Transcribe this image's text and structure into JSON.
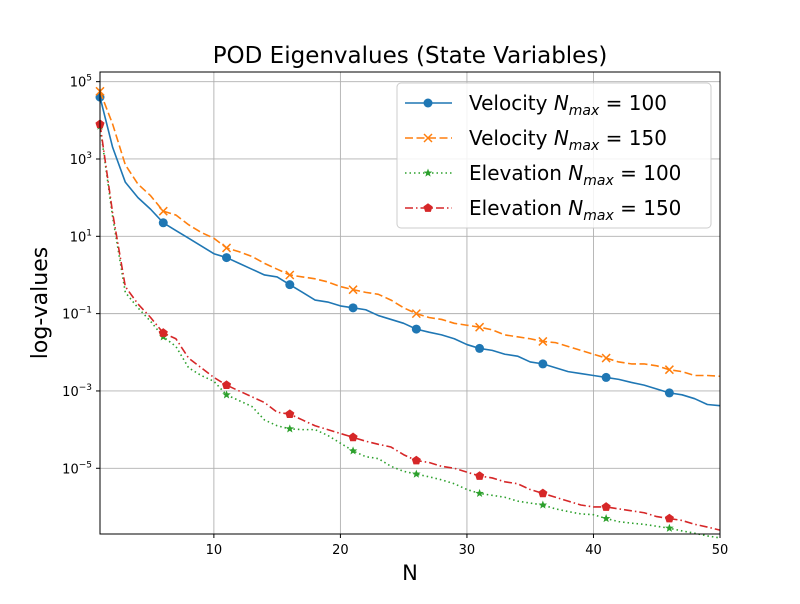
{
  "chart_data": {
    "type": "line",
    "title": "POD Eigenvalues (State Variables)",
    "xlabel": "N",
    "ylabel": "log-values",
    "xscale": "linear",
    "yscale": "log",
    "xlim": [
      1,
      50
    ],
    "ylim_exp": [
      -6.7,
      5.25
    ],
    "xticks": [
      10,
      20,
      30,
      40,
      50
    ],
    "yticks": [
      {
        "exp": 5,
        "base": "10",
        "sup": "5"
      },
      {
        "exp": 3,
        "base": "10",
        "sup": "3"
      },
      {
        "exp": 1,
        "base": "10",
        "sup": "1"
      },
      {
        "exp": -1,
        "base": "10",
        "sup": "−1"
      },
      {
        "exp": -3,
        "base": "10",
        "sup": "−3"
      },
      {
        "exp": -5,
        "base": "10",
        "sup": "−5"
      }
    ],
    "grid": true,
    "legend_position": "top-right",
    "x": [
      1,
      2,
      3,
      4,
      5,
      6,
      7,
      8,
      9,
      10,
      11,
      12,
      13,
      14,
      15,
      16,
      17,
      18,
      19,
      20,
      21,
      22,
      23,
      24,
      25,
      26,
      27,
      28,
      29,
      30,
      31,
      32,
      33,
      34,
      35,
      36,
      37,
      38,
      39,
      40,
      41,
      42,
      43,
      44,
      45,
      46,
      47,
      48,
      49,
      50
    ],
    "series": [
      {
        "name": "Velocity",
        "label_main": "Velocity ",
        "label_var": "N",
        "label_sub": "max",
        "label_eq": " = 100",
        "color": "#1f77b4",
        "dash": "",
        "marker": "circle",
        "log10": [
          4.6,
          3.3,
          2.4,
          2.0,
          1.7,
          1.35,
          1.15,
          0.95,
          0.75,
          0.55,
          0.45,
          0.3,
          0.15,
          0.0,
          -0.05,
          -0.25,
          -0.45,
          -0.65,
          -0.7,
          -0.8,
          -0.85,
          -0.9,
          -1.05,
          -1.15,
          -1.25,
          -1.4,
          -1.48,
          -1.55,
          -1.65,
          -1.8,
          -1.9,
          -1.95,
          -2.05,
          -2.1,
          -2.25,
          -2.3,
          -2.4,
          -2.5,
          -2.55,
          -2.6,
          -2.65,
          -2.7,
          -2.78,
          -2.85,
          -2.95,
          -3.05,
          -3.1,
          -3.2,
          -3.35,
          -3.38
        ]
      },
      {
        "name": "Velocity",
        "label_main": "Velocity ",
        "label_var": "N",
        "label_sub": "max",
        "label_eq": " = 150",
        "color": "#ff7f0e",
        "dash": "8,3.5",
        "marker": "x",
        "log10": [
          4.75,
          3.9,
          2.85,
          2.35,
          2.05,
          1.65,
          1.55,
          1.3,
          1.1,
          0.95,
          0.7,
          0.6,
          0.48,
          0.3,
          0.15,
          0.0,
          -0.05,
          -0.1,
          -0.18,
          -0.3,
          -0.38,
          -0.45,
          -0.5,
          -0.65,
          -0.85,
          -1.0,
          -1.1,
          -1.15,
          -1.25,
          -1.3,
          -1.35,
          -1.42,
          -1.55,
          -1.6,
          -1.65,
          -1.72,
          -1.75,
          -1.85,
          -1.95,
          -2.05,
          -2.15,
          -2.25,
          -2.3,
          -2.3,
          -2.35,
          -2.45,
          -2.5,
          -2.6,
          -2.6,
          -2.62
        ]
      },
      {
        "name": "Elevation",
        "label_main": "Elevation ",
        "label_var": "N",
        "label_sub": "max",
        "label_eq": " = 100",
        "color": "#2ca02c",
        "dash": "1.5,3",
        "marker": "star",
        "log10": [
          3.85,
          1.5,
          -0.45,
          -0.85,
          -1.2,
          -1.6,
          -1.85,
          -2.4,
          -2.6,
          -2.75,
          -3.1,
          -3.25,
          -3.4,
          -3.75,
          -3.9,
          -3.98,
          -4.0,
          -4.0,
          -4.15,
          -4.35,
          -4.55,
          -4.7,
          -4.75,
          -4.95,
          -5.08,
          -5.15,
          -5.22,
          -5.3,
          -5.4,
          -5.55,
          -5.65,
          -5.7,
          -5.75,
          -5.85,
          -5.9,
          -5.95,
          -6.05,
          -6.12,
          -6.18,
          -6.2,
          -6.3,
          -6.38,
          -6.42,
          -6.45,
          -6.5,
          -6.55,
          -6.62,
          -6.68,
          -6.75,
          -6.8
        ]
      },
      {
        "name": "Elevation",
        "label_main": "Elevation ",
        "label_var": "N",
        "label_sub": "max",
        "label_eq": " = 150",
        "color": "#d62728",
        "dash": "8,3,1.5,3",
        "marker": "pentagon",
        "log10": [
          3.9,
          1.6,
          -0.3,
          -0.75,
          -1.1,
          -1.5,
          -1.65,
          -2.15,
          -2.4,
          -2.65,
          -2.85,
          -3.0,
          -3.15,
          -3.3,
          -3.55,
          -3.6,
          -3.75,
          -3.9,
          -4.0,
          -4.1,
          -4.2,
          -4.3,
          -4.38,
          -4.45,
          -4.65,
          -4.8,
          -4.85,
          -4.95,
          -5.0,
          -5.1,
          -5.2,
          -5.25,
          -5.35,
          -5.4,
          -5.55,
          -5.65,
          -5.75,
          -5.85,
          -5.95,
          -6.0,
          -6.0,
          -6.05,
          -6.1,
          -6.15,
          -6.25,
          -6.3,
          -6.35,
          -6.45,
          -6.52,
          -6.6
        ]
      }
    ]
  }
}
